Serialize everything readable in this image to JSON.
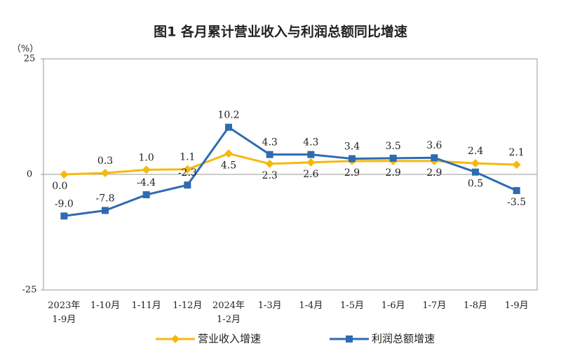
{
  "chart_data": {
    "type": "line",
    "title": "图1  各月累计营业收入与利润总额同比增速",
    "y_unit": "（%）",
    "categories": [
      "2023年\n1-9月",
      "1-10月",
      "1-11月",
      "1-12月",
      "2024年\n1-2月",
      "1-3月",
      "1-4月",
      "1-5月",
      "1-6月",
      "1-7月",
      "1-8月",
      "1-9月"
    ],
    "series": [
      {
        "name": "营业收入增速",
        "color": "#f5b90c",
        "marker": "diamond",
        "values": [
          0.0,
          0.3,
          1.0,
          1.1,
          4.5,
          2.3,
          2.6,
          2.9,
          2.9,
          2.9,
          2.4,
          2.1
        ],
        "value_labels": [
          "0.0",
          "0.3",
          "1.0",
          "1.1",
          "4.5",
          "2.3",
          "2.6",
          "2.9",
          "2.9",
          "2.9",
          "2.4",
          "2.1"
        ]
      },
      {
        "name": "利润总额增速",
        "color": "#2e6bb0",
        "marker": "square",
        "values": [
          -9.0,
          -7.8,
          -4.4,
          -2.3,
          10.2,
          4.3,
          4.3,
          3.4,
          3.5,
          3.6,
          0.5,
          -3.5
        ],
        "value_labels": [
          "-9.0",
          "-7.8",
          "-4.4",
          "-2.3",
          "10.2",
          "4.3",
          "4.3",
          "3.4",
          "3.5",
          "3.6",
          "0.5",
          "-3.5"
        ]
      }
    ],
    "ylim": [
      -25,
      25
    ],
    "yticks": [
      -25,
      0,
      25
    ],
    "zero_line": true
  }
}
